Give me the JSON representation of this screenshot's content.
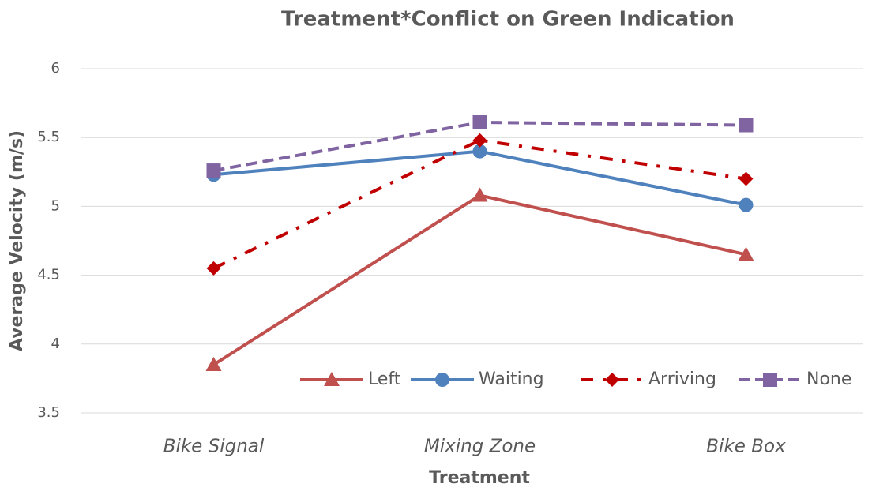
{
  "chart_data": {
    "type": "line",
    "title": "Treatment*Conflict on Green Indication",
    "x_label": "Treatment",
    "y_label": "Average Velocity (m/s)",
    "categories": [
      "Bike Signal",
      "Mixing Zone",
      "Bike Box"
    ],
    "series": [
      {
        "name": "Left",
        "color": "#c0504d",
        "marker": "triangle",
        "dash": "solid",
        "values": [
          3.85,
          5.08,
          4.65
        ]
      },
      {
        "name": "Waiting",
        "color": "#4f81bd",
        "marker": "circle",
        "dash": "solid",
        "values": [
          5.23,
          5.4,
          5.01
        ]
      },
      {
        "name": "Arriving",
        "color": "#c00000",
        "marker": "diamond",
        "dash": "dashdot",
        "values": [
          4.55,
          5.48,
          5.2
        ]
      },
      {
        "name": "None",
        "color": "#8064a2",
        "marker": "square",
        "dash": "dashed",
        "values": [
          5.26,
          5.61,
          5.59
        ]
      }
    ],
    "ylim": [
      3.5,
      6
    ],
    "yticks": [
      3.5,
      4,
      4.5,
      5,
      5.5,
      6
    ],
    "grid": true,
    "legend": "bottom-right"
  }
}
